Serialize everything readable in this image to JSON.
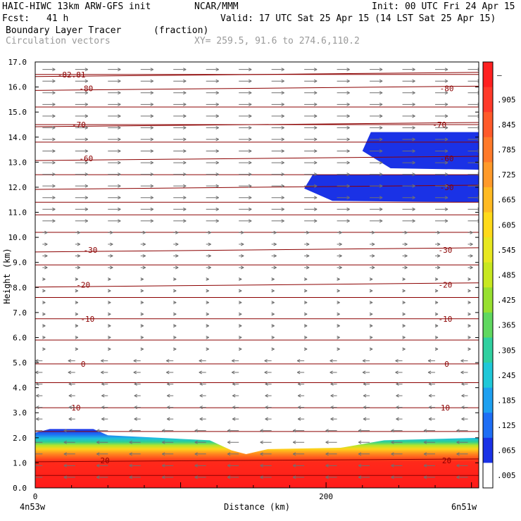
{
  "header": {
    "model": "HAIC-HIWC 13km ARW-GFS init",
    "org": "NCAR/MMM",
    "init": "Init: 00 UTC Fri 24 Apr 15",
    "fcst_label": "Fcst:",
    "fcst_value": "41 h",
    "valid": "Valid: 17 UTC Sat 25 Apr 15 (14 LST Sat 25 Apr 15)",
    "field": "Boundary Layer Tracer",
    "field_unit": "(fraction)",
    "vectors": "Circulation vectors",
    "xy": "XY= 259.5, 91.6 to 274.6,110.2"
  },
  "chart_data": {
    "type": "heatmap",
    "ylabel": "Height (km)",
    "xlabel": "Distance (km)",
    "x_left_label": "4n53w",
    "x_right_label": "6n51w",
    "xlim": [
      0,
      305
    ],
    "ylim": [
      0,
      17
    ],
    "x_ticks": [
      "0",
      "200"
    ],
    "x_tick_values": [
      0,
      200
    ],
    "y_ticks": [
      "0.0",
      "1.0",
      "2.0",
      "3.0",
      "4.0",
      "5.0",
      "6.0",
      "7.0",
      "8.0",
      "9.0",
      "10.0",
      "11.0",
      "12.0",
      "13.0",
      "14.0",
      "15.0",
      "16.0",
      "17.0"
    ],
    "colorbar": {
      "labels": [
        "–",
        ".905",
        ".845",
        ".785",
        ".725",
        ".665",
        ".605",
        ".545",
        ".485",
        ".425",
        ".365",
        ".305",
        ".245",
        ".185",
        ".125",
        ".065",
        ".005"
      ],
      "colors": [
        "#ff2020",
        "#ff3a2a",
        "#ff5a2a",
        "#ff7a2a",
        "#ff9a2a",
        "#ffba22",
        "#ffda1a",
        "#e8e820",
        "#c8e820",
        "#98e030",
        "#60d860",
        "#30d0a0",
        "#20c8d8",
        "#1ea0f0",
        "#1e6ef5",
        "#1a32e6",
        "#ffffff"
      ]
    },
    "temperature_contours": [
      {
        "label": "-82.81",
        "height_km": 16.5,
        "x_km": [
          25
        ]
      },
      {
        "label": "-80",
        "height_km": 15.95,
        "x_km": [
          35,
          283
        ]
      },
      {
        "label": "-70",
        "height_km": 14.5,
        "x_km": [
          30,
          278
        ]
      },
      {
        "label": "-60",
        "height_km": 13.15,
        "x_km": [
          35,
          283
        ]
      },
      {
        "label": "-50",
        "height_km": 12.0,
        "x_km": [
          283
        ]
      },
      {
        "label": "-30",
        "height_km": 9.5,
        "x_km": [
          38,
          282
        ]
      },
      {
        "label": "-20",
        "height_km": 8.1,
        "x_km": [
          33,
          282
        ]
      },
      {
        "label": "-10",
        "height_km": 6.75,
        "x_km": [
          36,
          282
        ]
      },
      {
        "label": "0",
        "height_km": 4.95,
        "x_km": [
          33,
          283
        ]
      },
      {
        "label": "10",
        "height_km": 3.2,
        "x_km": [
          28,
          282
        ]
      },
      {
        "label": "20",
        "height_km": 1.1,
        "x_km": [
          48,
          283
        ]
      }
    ],
    "boundary_layer_top_km": [
      {
        "x": 0,
        "y": 2.2
      },
      {
        "x": 10,
        "y": 2.35
      },
      {
        "x": 40,
        "y": 2.35
      },
      {
        "x": 50,
        "y": 2.1
      },
      {
        "x": 120,
        "y": 1.9
      },
      {
        "x": 135,
        "y": 1.5
      },
      {
        "x": 145,
        "y": 1.35
      },
      {
        "x": 160,
        "y": 1.55
      },
      {
        "x": 210,
        "y": 1.6
      },
      {
        "x": 240,
        "y": 1.9
      },
      {
        "x": 305,
        "y": 2.0
      }
    ],
    "tracer_anvil_layers": [
      {
        "x_start_km": 225,
        "x_end_km": 305,
        "bottom_km": 12.7,
        "top_km": 14.2
      },
      {
        "x_start_km": 185,
        "x_end_km": 305,
        "bottom_km": 11.4,
        "top_km": 12.5
      }
    ]
  }
}
